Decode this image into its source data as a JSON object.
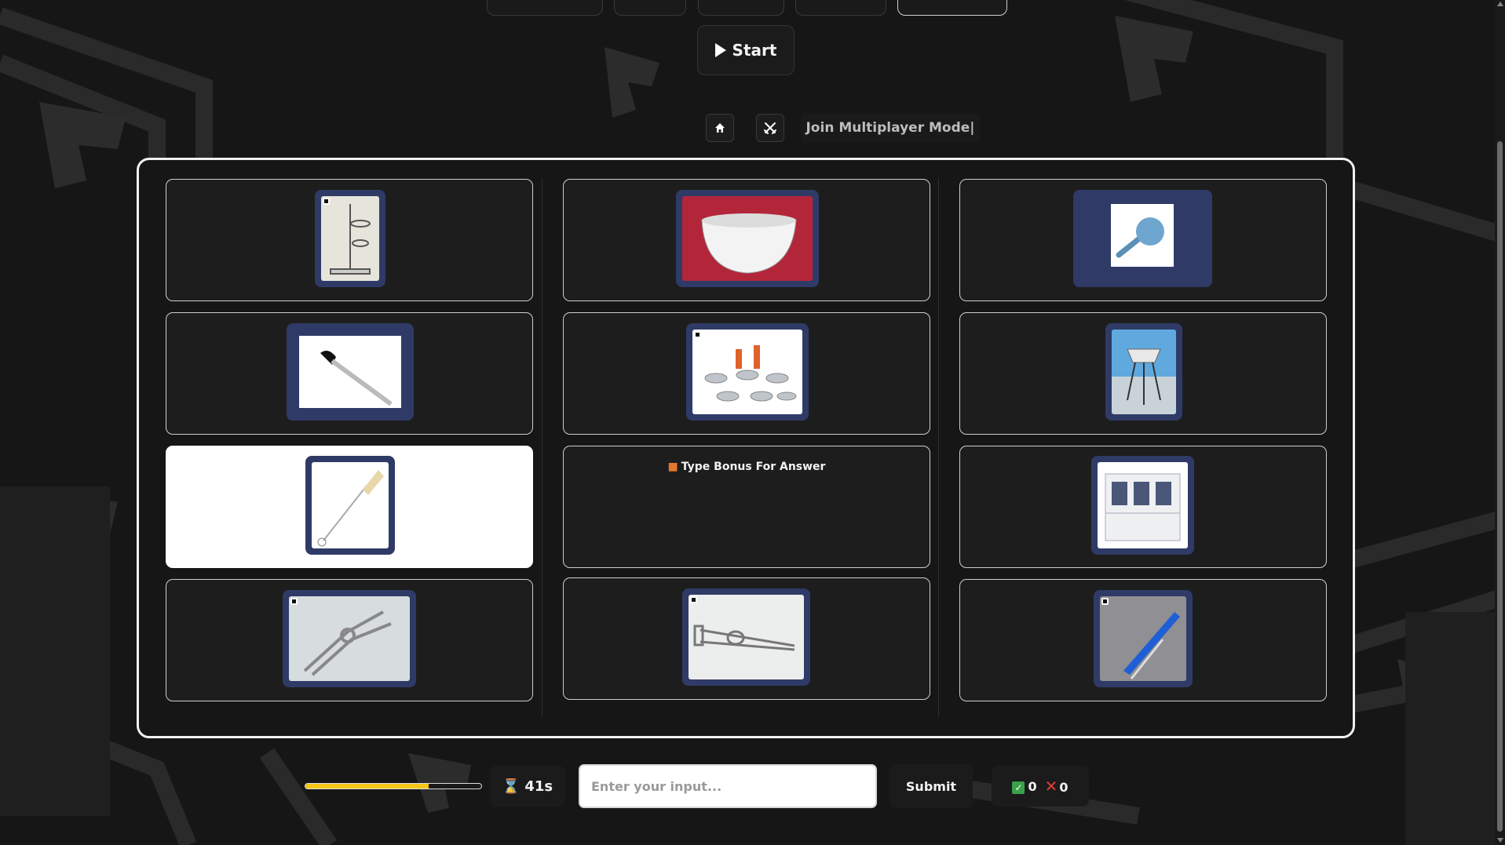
{
  "header": {
    "start_label": "Start",
    "join_multiplayer_label": "Join Multiplayer Mode|"
  },
  "board": {
    "cards": [
      {
        "name": "ring-stand",
        "selected": false
      },
      {
        "name": "evaporating-dish",
        "selected": false
      },
      {
        "name": "pipette-bulb",
        "selected": false
      },
      {
        "name": "dropper",
        "selected": false
      },
      {
        "name": "hooked-weights",
        "selected": false
      },
      {
        "name": "wire-gauze-on-tripod",
        "selected": false
      },
      {
        "name": "test-tube-brush",
        "selected": true
      },
      {
        "name": "bonus-card",
        "selected": false
      },
      {
        "name": "storage-cabinet",
        "selected": false
      },
      {
        "name": "beaker-tongs",
        "selected": false
      },
      {
        "name": "crucible-tongs",
        "selected": false
      },
      {
        "name": "scalpel",
        "selected": false
      }
    ],
    "bonus_text": "Type Bonus For Answer"
  },
  "footer": {
    "progress_fraction": 0.7,
    "timer_text": "41s",
    "input_placeholder": "Enter your input...",
    "submit_label": "Submit",
    "correct_count": "0",
    "wrong_count": "0"
  },
  "colors": {
    "thumb_frame": "#2f3b66",
    "progress_fill": "#f5c518",
    "correct": "#3aa14a",
    "wrong": "#e23a3a"
  },
  "icons": [
    "play-icon",
    "home-icon",
    "swords-icon",
    "gift-icon",
    "hourglass-icon",
    "check-icon",
    "cross-icon"
  ]
}
